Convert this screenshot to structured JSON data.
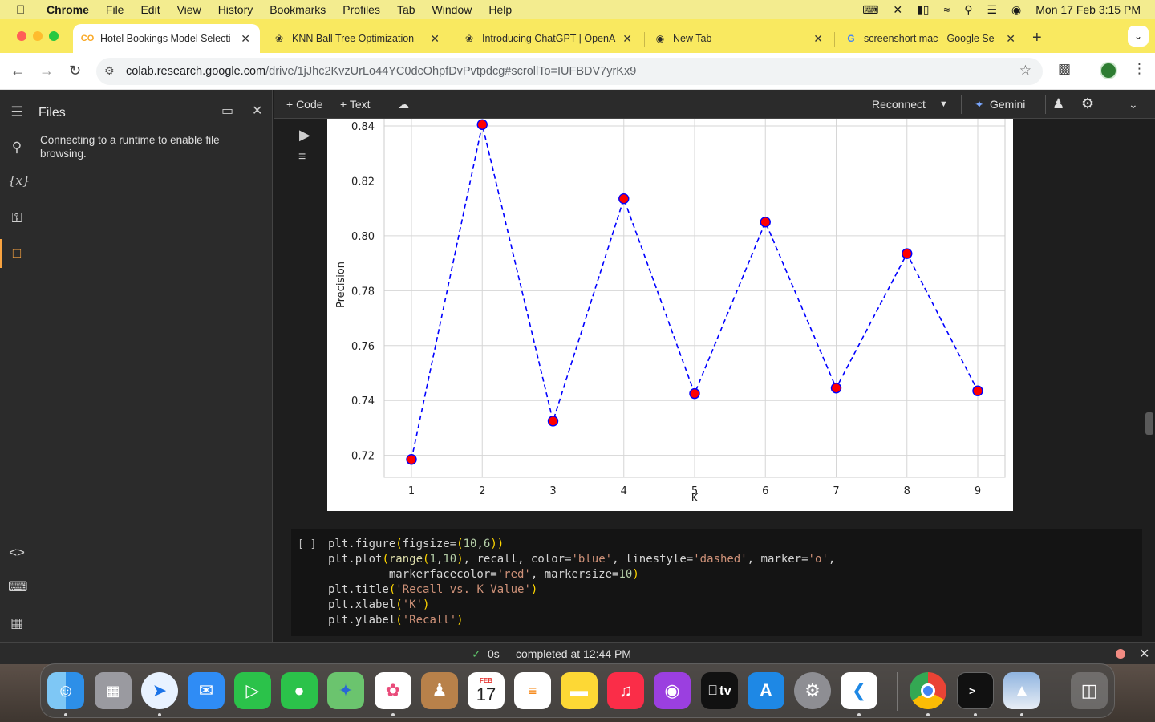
{
  "menubar": {
    "items": [
      "Chrome",
      "File",
      "Edit",
      "View",
      "History",
      "Bookmarks",
      "Profiles",
      "Tab",
      "Window",
      "Help"
    ],
    "clock": "Mon 17 Feb  3:15 PM"
  },
  "tabs": [
    {
      "title": "Hotel Bookings Model Selecti",
      "favicon": "colab-icon",
      "active": true
    },
    {
      "title": "KNN Ball Tree Optimization",
      "favicon": "openai-icon",
      "active": false
    },
    {
      "title": "Introducing ChatGPT | OpenA",
      "favicon": "openai-icon",
      "active": false
    },
    {
      "title": "New Tab",
      "favicon": "chrome-icon",
      "active": false
    },
    {
      "title": "screenshort mac - Google Se",
      "favicon": "google-icon",
      "active": false
    }
  ],
  "omnibox": {
    "host": "colab.research.google.com",
    "path": "/drive/1jJhc2KvzUrLo44YC0dcOhpfDvPvtpdcg#scrollTo=IUFBDV7yrKx9"
  },
  "files_panel": {
    "title": "Files",
    "message": "Connecting to a runtime to enable file browsing."
  },
  "colab_toolbar": {
    "code_label": "+ Code",
    "text_label": "+ Text",
    "reconnect_label": "Reconnect",
    "gemini_label": "Gemini"
  },
  "chart_data": {
    "type": "line",
    "xlabel": "K",
    "ylabel": "Precision",
    "x": [
      1,
      2,
      3,
      4,
      5,
      6,
      7,
      8,
      9
    ],
    "values": [
      0.7185,
      0.8405,
      0.7325,
      0.8135,
      0.7425,
      0.805,
      0.7445,
      0.7935,
      0.7435
    ],
    "ylim": [
      0.712,
      0.84
    ],
    "yticks": [
      0.72,
      0.74,
      0.76,
      0.78,
      0.8,
      0.82,
      0.84
    ],
    "yticklabels": [
      "0.72",
      "0.74",
      "0.76",
      "0.78",
      "0.80",
      "0.82",
      "0.84"
    ],
    "xticks": [
      1,
      2,
      3,
      4,
      5,
      6,
      7,
      8,
      9
    ],
    "grid": true,
    "line_color": "#0000ff",
    "marker_color": "#ff0000",
    "linestyle": "dashed"
  },
  "code_cell": {
    "bracket": "[ ]",
    "lines": [
      "plt.figure(figsize=(10,6))",
      "plt.plot(range(1,10), recall, color='blue', linestyle='dashed', marker='o',",
      "         markerfacecolor='red', markersize=10)",
      "plt.title('Recall vs. K Value')",
      "plt.xlabel('K')",
      "plt.ylabel('Recall')"
    ]
  },
  "status": {
    "duration": "0s",
    "completed": "completed at 12:44 PM"
  },
  "dock": {
    "calendar_month": "FEB",
    "calendar_day": "17",
    "tv_label": "tv"
  }
}
